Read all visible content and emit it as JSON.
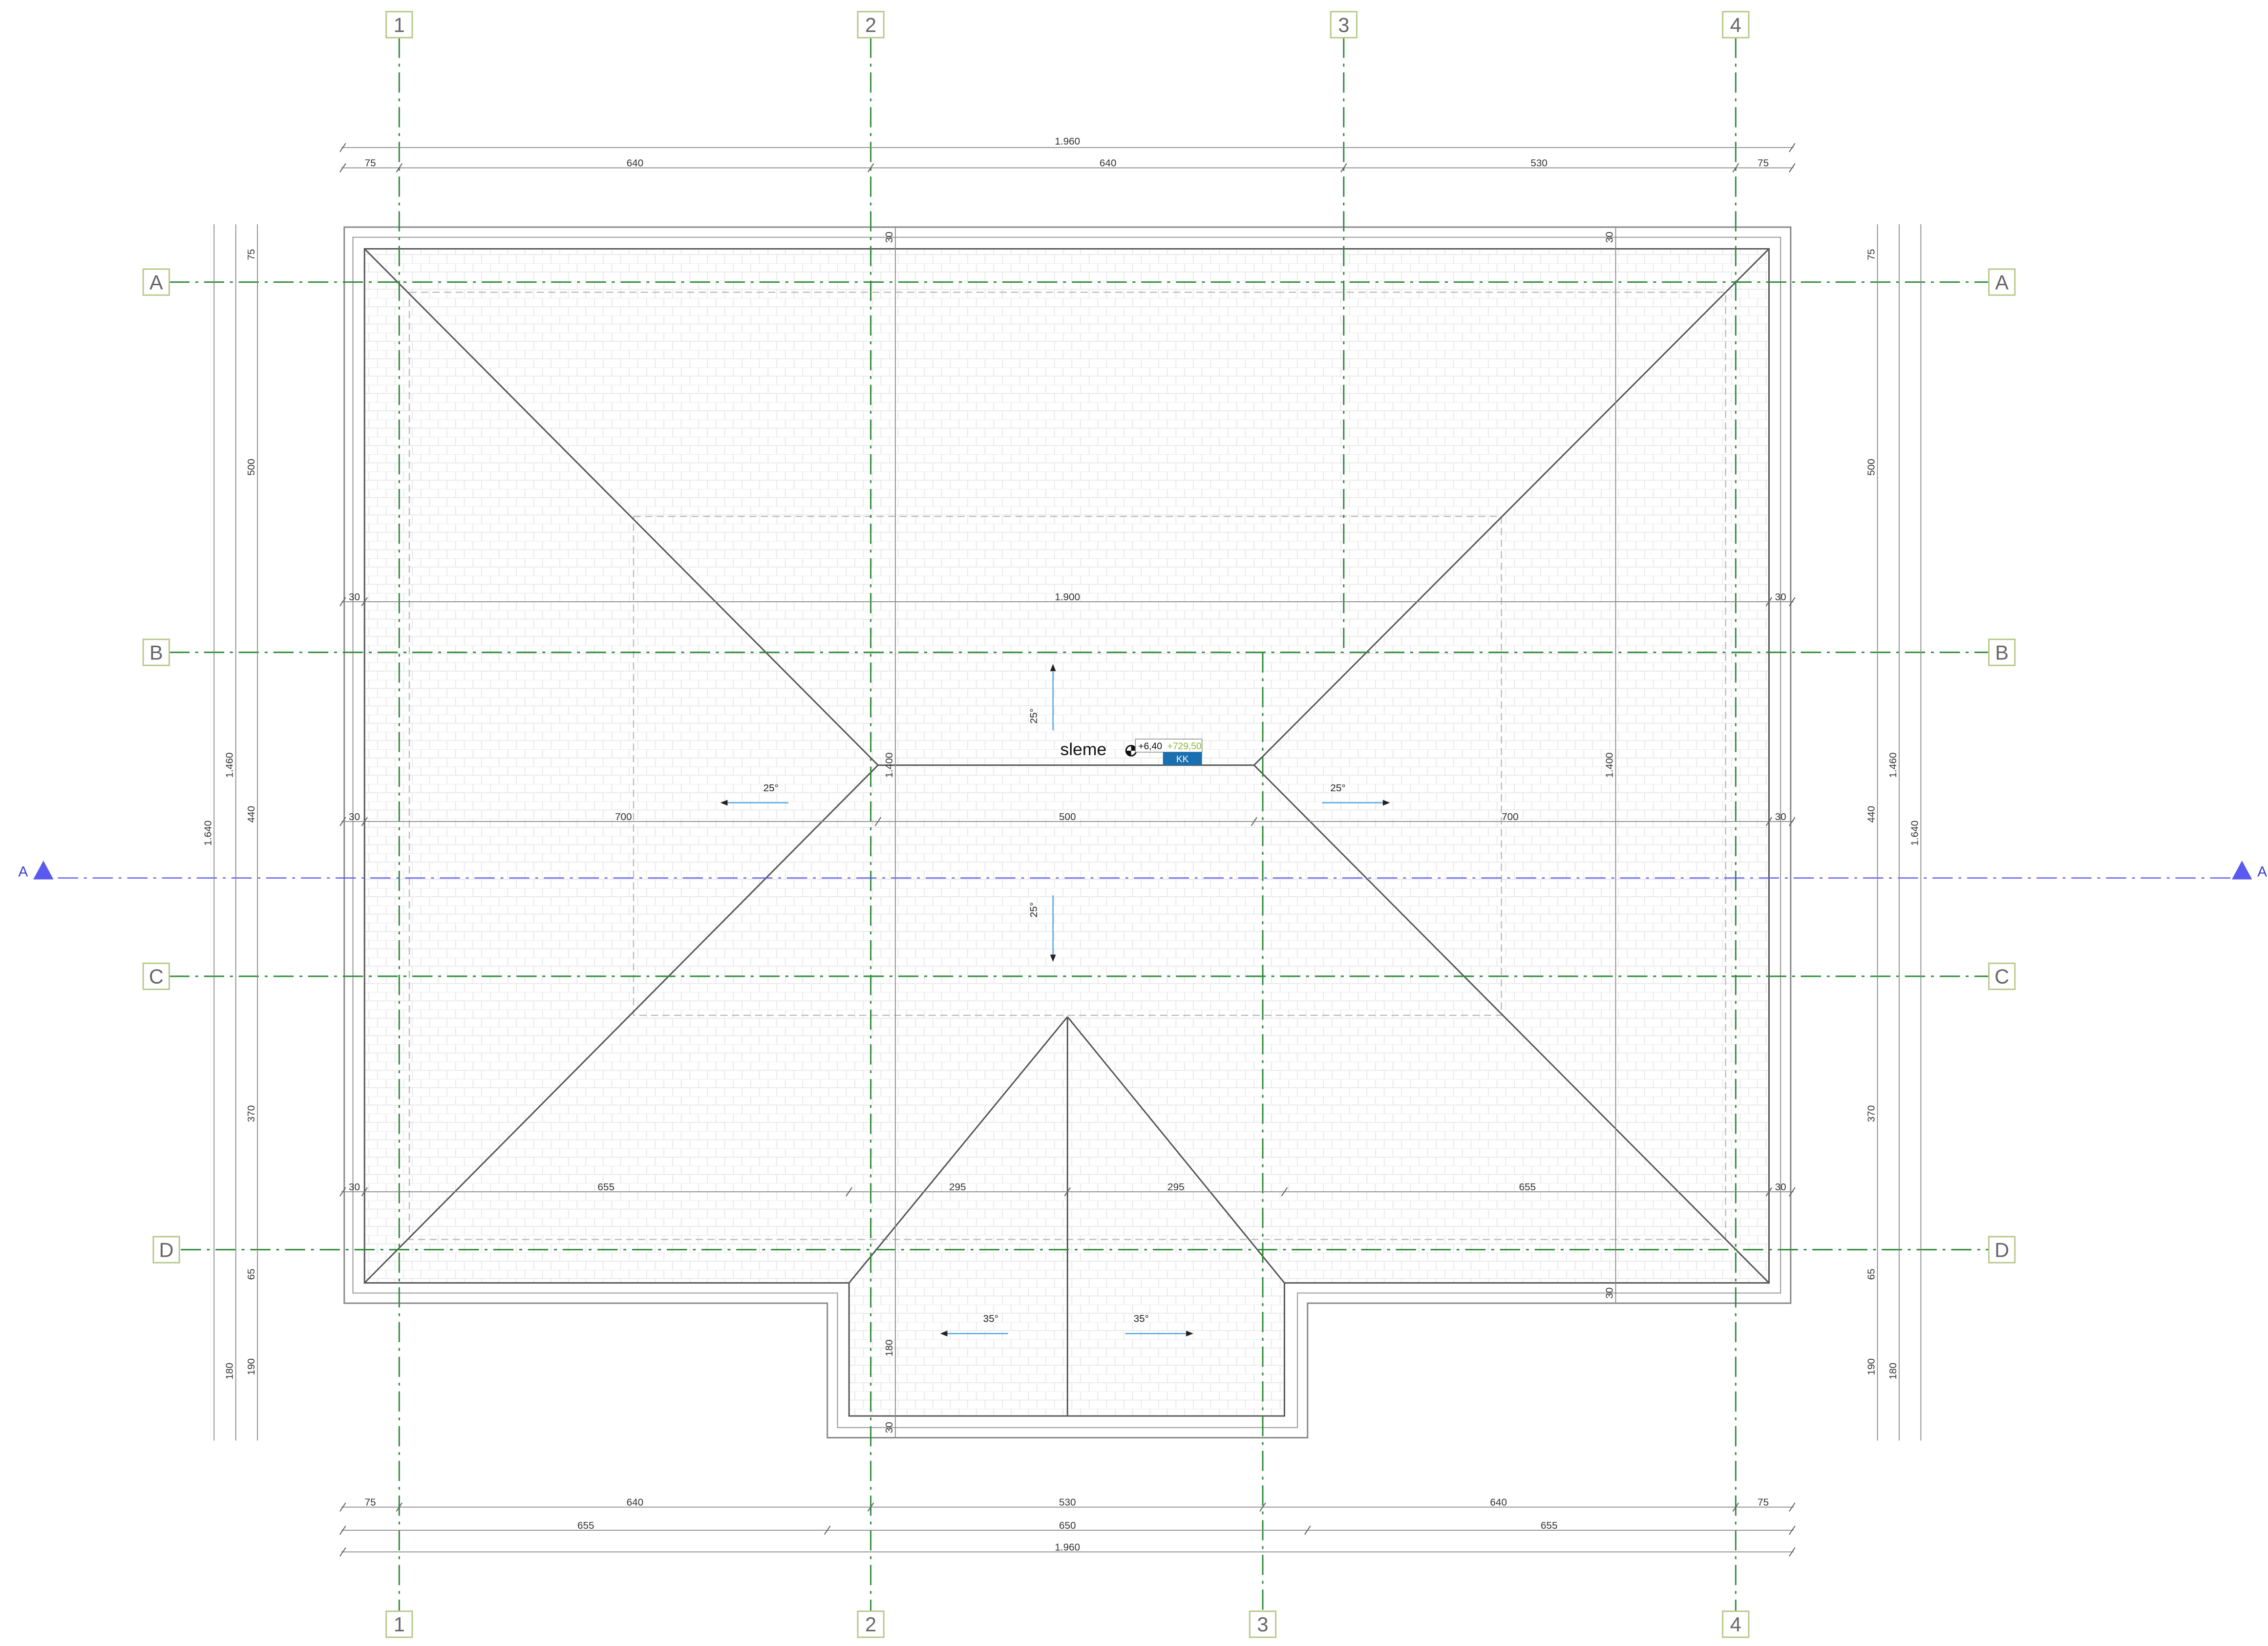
{
  "grid_bubbles": {
    "top": [
      "1",
      "2",
      "3",
      "4"
    ],
    "bottom": [
      "1",
      "2",
      "3",
      "4"
    ],
    "left": [
      "A",
      "B",
      "C",
      "D"
    ],
    "right": [
      "A",
      "B",
      "C",
      "D"
    ]
  },
  "section_marker": {
    "left": "A",
    "right": "A"
  },
  "ridge": {
    "label": "sleme",
    "elevation_relative": "+6,40",
    "elevation_absolute": "+729,50",
    "tag": "KK"
  },
  "slopes": {
    "main": "25°",
    "gable": "35°"
  },
  "dims_top": {
    "overall": "1.960",
    "segments": [
      "75",
      "640",
      "640",
      "530",
      "75"
    ]
  },
  "dims_bottom": {
    "row1": [
      "75",
      "640",
      "530",
      "640",
      "75"
    ],
    "row2": [
      "655",
      "650",
      "655"
    ],
    "overall": "1.960"
  },
  "dims_left": {
    "segments": [
      "75",
      "500",
      "440",
      "370",
      "65",
      "190"
    ],
    "total_inner": "1.460",
    "total_outer": "1.640",
    "extension": "180"
  },
  "dims_right": {
    "segments": [
      "75",
      "500",
      "440",
      "370",
      "65",
      "190"
    ],
    "total_inner": "1.460",
    "total_outer": "1.640",
    "extension": "180"
  },
  "dims_internal": {
    "row_b": [
      "30",
      "1.900",
      "30"
    ],
    "row_mid": [
      "30",
      "700",
      "500",
      "700",
      "30"
    ],
    "row_low": [
      "30",
      "655",
      "295",
      "295",
      "655",
      "30"
    ],
    "vertical_top": [
      "30",
      "30"
    ],
    "vertical_center": [
      "1.400",
      "1.400"
    ],
    "vertical_bottom": [
      "30",
      "30"
    ],
    "gable_height": "180"
  },
  "colors": {
    "grid_line": "#2e8b3a",
    "bubble_border": "#b7c98a",
    "section_line": "#5a5af0",
    "slope_arrow": "#4aa3df",
    "roof_line": "#555555",
    "dim_line": "#888888",
    "tile_pattern": "#e6e6e6",
    "elevation_accent": "#8ab83a",
    "tag_fill": "#1a6fb0"
  }
}
